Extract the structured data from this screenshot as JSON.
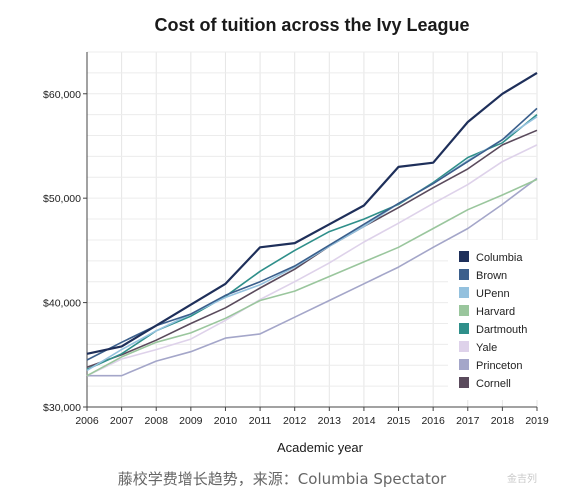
{
  "chart_data": {
    "type": "line",
    "title": "Cost of tuition across the Ivy League",
    "xlabel": "Academic year",
    "ylabel": "",
    "x": [
      2006,
      2007,
      2008,
      2009,
      2010,
      2011,
      2012,
      2013,
      2014,
      2015,
      2016,
      2017,
      2018,
      2019
    ],
    "xlim": [
      2006,
      2019
    ],
    "ylim": [
      30000,
      64000
    ],
    "yticks": [
      30000,
      40000,
      50000,
      60000
    ],
    "ytick_labels": [
      "$30,000",
      "$40,000",
      "$50,000",
      "$60,000"
    ],
    "grid": true,
    "legend_position": "right",
    "series": [
      {
        "name": "Columbia",
        "color": "#1e2f5a",
        "values": [
          35100,
          35800,
          37800,
          39800,
          41800,
          45300,
          45700,
          47500,
          49300,
          53000,
          53400,
          57300,
          60000,
          62000
        ]
      },
      {
        "name": "Brown",
        "color": "#3b5f8c",
        "values": [
          34500,
          36200,
          37800,
          38900,
          40700,
          42000,
          43500,
          45500,
          47500,
          49500,
          51400,
          53500,
          55600,
          58600
        ]
      },
      {
        "name": "UPenn",
        "color": "#94c1de",
        "values": [
          33500,
          35500,
          37300,
          38900,
          40500,
          41700,
          43400,
          45400,
          47300,
          49500,
          51400,
          53600,
          55600,
          57800
        ]
      },
      {
        "name": "Harvard",
        "color": "#9ac69d",
        "values": [
          33000,
          34800,
          36200,
          37100,
          38500,
          40200,
          41100,
          42500,
          43900,
          45300,
          47100,
          48900,
          50300,
          51800
        ]
      },
      {
        "name": "Dartmouth",
        "color": "#2f8f8a",
        "values": [
          33600,
          35100,
          37300,
          38700,
          40600,
          43000,
          45000,
          46800,
          48000,
          49400,
          51500,
          53900,
          55300,
          58000
        ]
      },
      {
        "name": "Yale",
        "color": "#ded2ea",
        "values": [
          33000,
          34600,
          35500,
          36500,
          38300,
          40300,
          42000,
          43800,
          45800,
          47600,
          49500,
          51300,
          53500,
          55100
        ]
      },
      {
        "name": "Princeton",
        "color": "#a4a6c9",
        "values": [
          33000,
          33000,
          34400,
          35300,
          36600,
          37000,
          38600,
          40200,
          41800,
          43400,
          45300,
          47100,
          49400,
          51900
        ]
      },
      {
        "name": "Cornell",
        "color": "#5a4a5c",
        "values": [
          33800,
          35000,
          36400,
          38000,
          39500,
          41400,
          43200,
          45400,
          47300,
          49100,
          51000,
          52800,
          55100,
          56500
        ]
      }
    ]
  },
  "caption": "藤校学费增长趋势，来源：Columbia Spectator",
  "watermark": "金吉列"
}
